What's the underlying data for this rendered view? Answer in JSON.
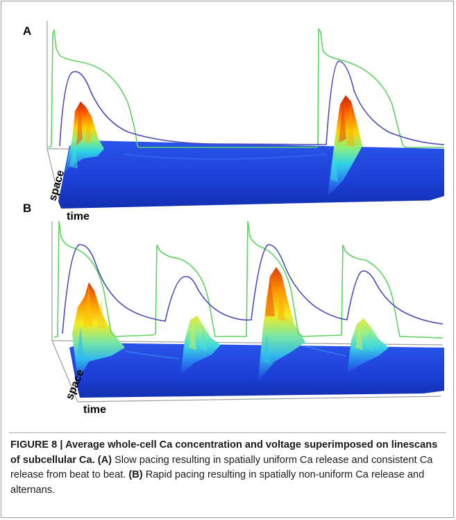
{
  "figure": {
    "panel_a_label": "A",
    "panel_b_label": "B",
    "axis_space": "space",
    "axis_time": "time",
    "colors": {
      "voltage_trace": "#5ed35e",
      "ca_trace": "#4a4ab8",
      "colormap_low": "#1f3fd8",
      "colormap_high": "#d92a10"
    }
  },
  "caption": {
    "fig_label": "FIGURE 8 | Average whole-cell Ca concentration and voltage superimposed on linescans of subcellular Ca.",
    "a_tag": "(A)",
    "a_text": " Slow pacing resulting in spatially uniform Ca release and consistent Ca release from beat to beat.",
    "b_tag": "(B)",
    "b_text": " Rapid pacing resulting in spatially non-uniform Ca release and alternans."
  }
}
